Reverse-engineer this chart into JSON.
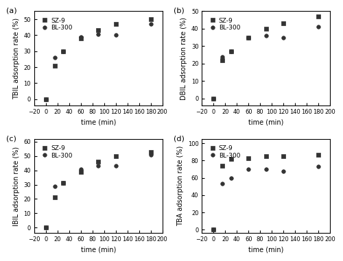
{
  "panels": [
    {
      "label": "(a)",
      "ylabel": "TBIL adsorption rate (%)",
      "ylim": [
        -4,
        55
      ],
      "yticks": [
        0,
        10,
        20,
        30,
        40,
        50
      ],
      "sz9_x": [
        0,
        15,
        30,
        60,
        90,
        120,
        180
      ],
      "sz9_y": [
        0,
        21,
        30,
        38,
        43,
        47,
        50
      ],
      "bl300_x": [
        0,
        15,
        30,
        60,
        90,
        120,
        180
      ],
      "bl300_y": [
        0,
        26,
        30,
        39,
        40.5,
        40,
        47
      ]
    },
    {
      "label": "(b)",
      "ylabel": "DBIL adsorption rate (%)",
      "ylim": [
        -4,
        50
      ],
      "yticks": [
        0,
        10,
        20,
        30,
        40,
        50
      ],
      "sz9_x": [
        0,
        15,
        30,
        60,
        90,
        120,
        180
      ],
      "sz9_y": [
        0,
        22,
        27,
        35,
        40,
        43,
        47
      ],
      "bl300_x": [
        0,
        15,
        30,
        60,
        90,
        120,
        180
      ],
      "bl300_y": [
        0,
        24,
        27,
        35,
        36,
        35,
        41
      ]
    },
    {
      "label": "(c)",
      "ylabel": "IBIL adsorption rate (%)",
      "ylim": [
        -4,
        62
      ],
      "yticks": [
        0,
        10,
        20,
        30,
        40,
        50,
        60
      ],
      "sz9_x": [
        0,
        15,
        30,
        60,
        90,
        120,
        180
      ],
      "sz9_y": [
        0,
        21,
        31,
        39,
        46,
        50,
        53
      ],
      "bl300_x": [
        0,
        15,
        30,
        60,
        90,
        120,
        180
      ],
      "bl300_y": [
        0,
        29,
        31,
        41,
        43,
        43,
        51
      ]
    },
    {
      "label": "(d)",
      "ylabel": "TBA adsorption rate (%)",
      "ylim": [
        -4,
        105
      ],
      "yticks": [
        0,
        20,
        40,
        60,
        80,
        100
      ],
      "sz9_x": [
        0,
        15,
        30,
        60,
        90,
        120,
        180
      ],
      "sz9_y": [
        0,
        74,
        82,
        83,
        85,
        85,
        87
      ],
      "bl300_x": [
        0,
        15,
        30,
        60,
        90,
        120,
        180
      ],
      "bl300_y": [
        0,
        53,
        60,
        70,
        70,
        68,
        73
      ]
    }
  ],
  "xlim": [
    -20,
    200
  ],
  "xticks": [
    -20,
    0,
    20,
    40,
    60,
    80,
    100,
    120,
    140,
    160,
    180,
    200
  ],
  "xlabel": "time (min)",
  "sz9_color": "#333333",
  "bl300_color": "#333333",
  "sz9_marker": "s",
  "bl300_marker": "o",
  "sz9_linestyle": "-",
  "bl300_linestyle": "--",
  "sz9_label": "SZ-9",
  "bl300_label": "BL-300",
  "marker_size": 4,
  "line_width": 1.0
}
